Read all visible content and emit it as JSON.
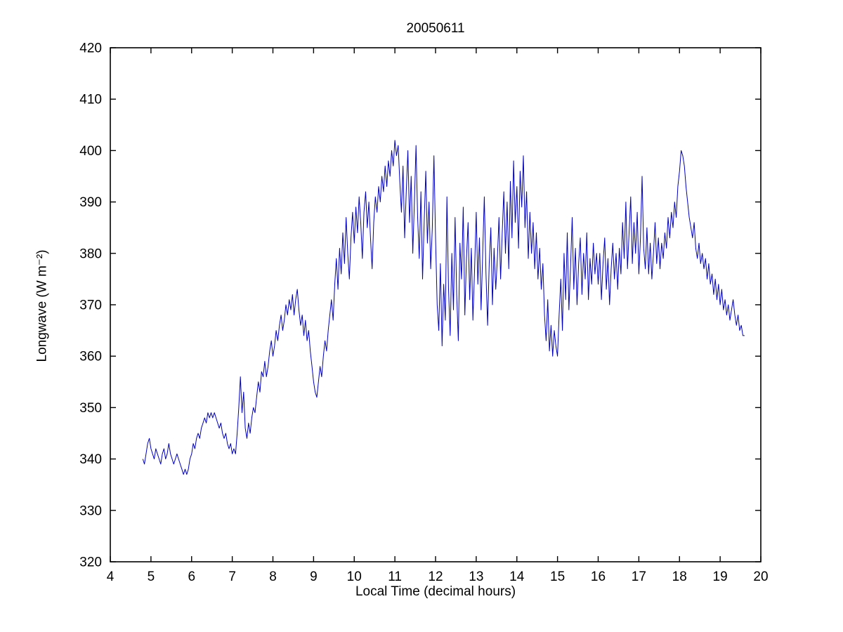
{
  "page": {
    "background": "#ffffff"
  },
  "chart_data": {
    "type": "line",
    "title": "20050611",
    "xlabel": "Local Time (decimal hours)",
    "ylabel": "Longwave (W m⁻²)",
    "xlim": [
      4,
      20
    ],
    "ylim": [
      320,
      420
    ],
    "xticks": [
      4,
      5,
      6,
      7,
      8,
      9,
      10,
      11,
      12,
      13,
      14,
      15,
      16,
      17,
      18,
      19,
      20
    ],
    "yticks": [
      320,
      330,
      340,
      350,
      360,
      370,
      380,
      390,
      400,
      410,
      420
    ],
    "grid": false,
    "legend": null,
    "line_color": "#0000BB",
    "axis_color": "#000000",
    "series": [
      {
        "name": "longwave",
        "x_start": 4.8,
        "x_step": 0.04,
        "values": [
          340,
          339,
          341,
          343,
          344,
          342,
          341,
          340,
          342,
          341,
          340,
          339,
          341,
          342,
          340,
          341,
          343,
          341,
          340,
          339,
          340,
          341,
          340,
          339,
          338,
          337,
          338,
          337,
          338,
          340,
          341,
          343,
          342,
          344,
          345,
          344,
          346,
          347,
          348,
          347,
          349,
          348,
          349,
          348,
          349,
          348,
          347,
          346,
          347,
          345,
          344,
          345,
          343,
          342,
          343,
          341,
          342,
          341,
          345,
          350,
          356,
          349,
          353,
          346,
          344,
          347,
          345,
          348,
          350,
          349,
          352,
          355,
          353,
          357,
          356,
          359,
          356,
          358,
          361,
          363,
          360,
          362,
          365,
          363,
          366,
          368,
          365,
          367,
          370,
          368,
          371,
          369,
          372,
          368,
          371,
          373,
          369,
          366,
          368,
          364,
          367,
          363,
          365,
          361,
          358,
          355,
          353,
          352,
          355,
          358,
          356,
          360,
          363,
          361,
          365,
          368,
          371,
          367,
          374,
          379,
          373,
          381,
          376,
          384,
          378,
          387,
          380,
          375,
          383,
          388,
          382,
          389,
          384,
          391,
          386,
          379,
          388,
          392,
          385,
          390,
          383,
          377,
          386,
          391,
          388,
          393,
          390,
          395,
          392,
          397,
          393,
          398,
          395,
          400,
          397,
          402,
          399,
          401,
          394,
          388,
          397,
          383,
          392,
          400,
          386,
          395,
          380,
          390,
          401,
          387,
          379,
          392,
          375,
          386,
          396,
          382,
          390,
          377,
          385,
          399,
          383,
          370,
          365,
          378,
          362,
          374,
          367,
          391,
          373,
          364,
          380,
          369,
          387,
          372,
          363,
          382,
          375,
          389,
          368,
          379,
          386,
          371,
          381,
          367,
          377,
          388,
          374,
          383,
          369,
          380,
          391,
          376,
          366,
          378,
          385,
          370,
          381,
          373,
          379,
          387,
          375,
          384,
          392,
          380,
          390,
          377,
          394,
          383,
          398,
          386,
          393,
          381,
          396,
          389,
          399,
          385,
          392,
          379,
          388,
          380,
          386,
          377,
          384,
          375,
          381,
          373,
          378,
          368,
          363,
          371,
          361,
          366,
          360,
          365,
          362,
          360,
          368,
          375,
          365,
          380,
          371,
          384,
          369,
          377,
          387,
          373,
          381,
          370,
          378,
          383,
          372,
          380,
          375,
          384,
          371,
          379,
          374,
          382,
          376,
          380,
          374,
          380,
          371,
          378,
          383,
          373,
          379,
          370,
          377,
          382,
          375,
          380,
          373,
          381,
          376,
          386,
          379,
          390,
          377,
          384,
          391,
          378,
          386,
          380,
          388,
          376,
          383,
          395,
          381,
          377,
          385,
          376,
          382,
          375,
          380,
          386,
          378,
          383,
          377,
          382,
          379,
          384,
          381,
          387,
          383,
          388,
          385,
          390,
          387,
          393,
          396,
          400,
          399,
          397,
          393,
          390,
          387,
          385,
          383,
          386,
          381,
          379,
          382,
          378,
          380,
          377,
          379,
          375,
          378,
          374,
          376,
          372,
          375,
          371,
          374,
          370,
          373,
          369,
          371,
          368,
          370,
          367,
          369,
          371,
          368,
          366,
          368,
          365,
          366,
          364,
          364
        ]
      }
    ]
  }
}
